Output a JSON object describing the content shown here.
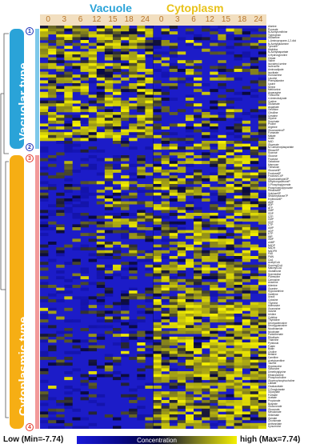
{
  "chart_data": {
    "type": "heatmap",
    "groups": [
      {
        "name": "Vacuole",
        "color": "#2aa3d8"
      },
      {
        "name": "Cytoplasm",
        "color": "#e8c21a"
      }
    ],
    "time_points": [
      "0",
      "3",
      "6",
      "12",
      "15",
      "18",
      "24"
    ],
    "columns_per_time": 2,
    "row_groups": [
      {
        "name": "Vacuolar type",
        "color": "#2aa3d8",
        "start_badge": "1",
        "end_badge": "2",
        "rows": 40
      },
      {
        "name": "Cytoplasmic type",
        "color": "#f6ae14",
        "start_badge": "3",
        "end_badge": "4",
        "rows": 100
      }
    ],
    "color_scale": {
      "min_label": "Low (Min=-7.74)",
      "max_label": "high (Max=7.74)",
      "caption": "Concentration",
      "min": -7.74,
      "max": 7.74,
      "low_color": "#1818d8",
      "mid_color": "#000030",
      "high_color": "#f5f000"
    },
    "row_labels": [
      "Alanine",
      "Pyruvate",
      "N-Acetylornithine",
      "Tryptophan",
      "Glutamine",
      "1-Aminopropane-1,2-diol",
      "N-Acetylglutamine",
      "Tyrosine",
      "Histidine",
      "N-Acetylaspartate",
      "4-Hydroxyproline",
      "Citrate",
      "Valine",
      "Isovaleryl-serine",
      "Isoleucine",
      "Aminoadipate",
      "Isocitrate",
      "Homoserine",
      "Leucine",
      "Phenylalanine",
      "Lysine",
      "Serine",
      "Methionine",
      "Asparagine",
      "Threonine",
      "4-Aminobutyrate",
      "Cystine",
      "Glutamate",
      "Aspartate",
      "Ornithine",
      "Citrulline",
      "Creatine",
      "Glycine",
      "Succinate",
      "Proline",
      "Arginine",
      "GlucosaminoP",
      "Fumarate",
      "Malate",
      "Urate",
      "NAD",
      "Glycerate",
      "N-Carbamoylaspartate",
      "Ribose5P",
      "Sucrose",
      "Glucose",
      "Fructose",
      "Galactose",
      "Mannose",
      "Trehalose",
      "Glucose6P",
      "Fructose6P",
      "Fructose1,6P",
      "Glyceraldehyde3P",
      "DihydroxyacetoneP",
      "3-Phosphoglycerate",
      "Phosphoenolpyruvate",
      "Ribulose5P",
      "Xylulose5P",
      "Sedoheptulose7P",
      "Erythrose4P",
      "AMP",
      "ADP",
      "ATP",
      "GMP",
      "GDP",
      "GTP",
      "CMP",
      "CDP",
      "CTP",
      "UMP",
      "UDP",
      "UTP",
      "IMP",
      "XMP",
      "cAMP",
      "NADP",
      "NADH",
      "NADPH",
      "FAD",
      "FMN",
      "CoA",
      "AcetylCoA",
      "SuccinylCoA",
      "MalonylCoA",
      "Glutathione",
      "Spermidine",
      "Putrescine",
      "Carnosine",
      "Anserine",
      "Adenine",
      "Guanine",
      "Hypoxanthine",
      "Xanthine",
      "Uracil",
      "Cytosine",
      "Thymine",
      "Adenosine",
      "Guanosine",
      "Inosine",
      "Uridine",
      "Cytidine",
      "Thymidine",
      "Deoxyadenosine",
      "Deoxyguanosine",
      "Nicotinamide",
      "Nicotinate",
      "Pantothenate",
      "Riboflavin",
      "Thiamine",
      "Pyridoxal",
      "Folate",
      "Biotin",
      "Choline",
      "Betaine",
      "Carnitine",
      "Acetylcarnitine",
      "Taurine",
      "Hypotaurine",
      "Sarcosine",
      "Dimethylglycine",
      "Ethanolamine",
      "Phosphocholine",
      "Glycerophosphocholine",
      "Lactate",
      "Oxaloacetate",
      "2-Oxoglutarate",
      "Glyoxylate",
      "Formate",
      "Acetate",
      "Propionate",
      "Butyrate",
      "Glucuronate",
      "Gluconate",
      "Mevalonate",
      "Shikimate",
      "Quinate",
      "Chorismate",
      "Anthranilate",
      "Kynurenine"
    ]
  }
}
